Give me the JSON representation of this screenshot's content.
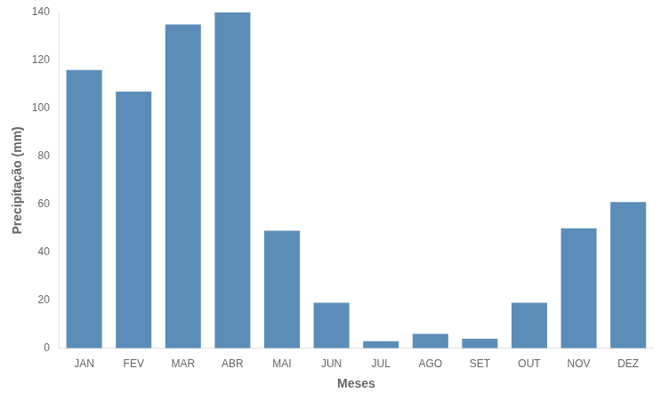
{
  "chart_data": {
    "type": "bar",
    "categories": [
      "JAN",
      "FEV",
      "MAR",
      "ABR",
      "MAI",
      "JUN",
      "JUL",
      "AGO",
      "SET",
      "OUT",
      "NOV",
      "DEZ"
    ],
    "values": [
      116,
      107,
      135,
      140,
      49,
      19,
      3,
      6,
      4,
      19,
      50,
      61
    ],
    "color": "#5B8DB8",
    "xlabel": "Meses",
    "ylabel": "Precipitação (mm)",
    "ylim": [
      0,
      140
    ],
    "yticks": [
      0,
      20,
      40,
      60,
      80,
      100,
      120,
      140
    ],
    "grid": false
  }
}
